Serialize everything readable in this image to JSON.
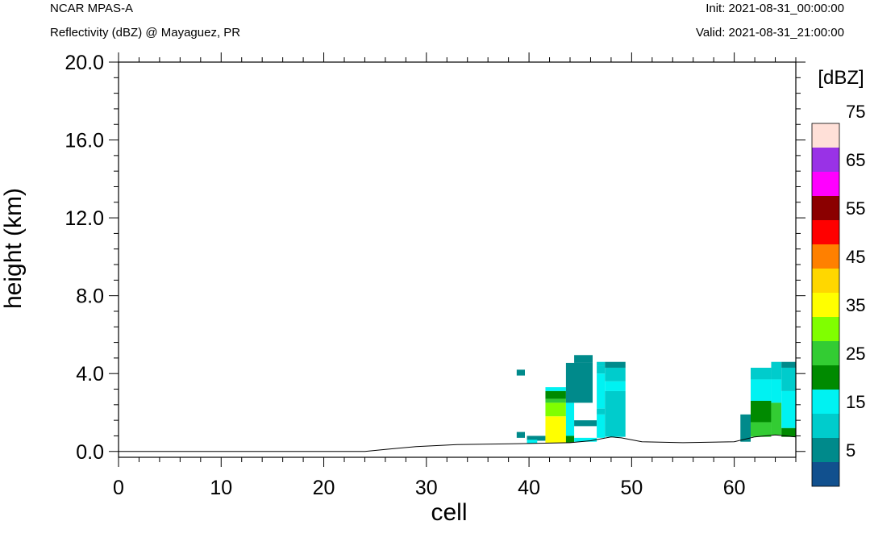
{
  "header": {
    "model": "NCAR MPAS-A",
    "subtitle": "Reflectivity (dBZ) @ Mayaguez, PR",
    "init": "Init: 2021-08-31_00:00:00",
    "valid": "Valid: 2021-08-31_21:00:00"
  },
  "colors": {
    "palette": [
      "#11508e",
      "#008a8b",
      "#00cccc",
      "#00f2f2",
      "#008a00",
      "#33cc33",
      "#80ff00",
      "#ffff00",
      "#ffd700",
      "#ff8000",
      "#ff0000",
      "#8b0000",
      "#ff00ff",
      "#9932e6",
      "#ffe0d8"
    ]
  },
  "chart_data": {
    "type": "heatmap",
    "xlabel": "cell",
    "ylabel": "height (km)",
    "xlim": [
      0,
      66
    ],
    "ylim": [
      -0.3,
      20.0
    ],
    "xticks": [
      "0",
      "10",
      "20",
      "30",
      "40",
      "50",
      "60"
    ],
    "yticks": [
      "0.0",
      "4.0",
      "8.0",
      "12.0",
      "16.0",
      "20.0"
    ],
    "colorbar": {
      "label": "[dBZ]",
      "min": 0,
      "max": 75,
      "step": 5,
      "tick_labels": [
        "5",
        "15",
        "25",
        "35",
        "45",
        "55",
        "65",
        "75"
      ]
    },
    "terrain": [
      [
        0,
        0.0
      ],
      [
        24,
        0.0
      ],
      [
        26,
        0.1
      ],
      [
        29,
        0.25
      ],
      [
        33,
        0.35
      ],
      [
        39,
        0.4
      ],
      [
        44,
        0.45
      ],
      [
        46,
        0.55
      ],
      [
        48,
        0.75
      ],
      [
        49,
        0.7
      ],
      [
        51,
        0.5
      ],
      [
        55,
        0.45
      ],
      [
        60,
        0.5
      ],
      [
        62,
        0.75
      ],
      [
        64,
        0.85
      ],
      [
        66,
        0.75
      ]
    ],
    "cells": [
      {
        "x0": 38.8,
        "x1": 39.6,
        "y0": 3.9,
        "y1": 4.2,
        "dbz": 5
      },
      {
        "x0": 38.8,
        "x1": 39.6,
        "y0": 0.7,
        "y1": 1.0,
        "dbz": 5
      },
      {
        "x0": 39.8,
        "x1": 41.6,
        "y0": 0.55,
        "y1": 0.8,
        "dbz": 5
      },
      {
        "x0": 39.8,
        "x1": 40.8,
        "y0": 0.42,
        "y1": 0.6,
        "dbz": 15
      },
      {
        "x0": 41.6,
        "x1": 43.6,
        "y0": 3.1,
        "y1": 3.3,
        "dbz": 15
      },
      {
        "x0": 41.6,
        "x1": 43.6,
        "y0": 2.7,
        "y1": 3.1,
        "dbz": 20
      },
      {
        "x0": 41.6,
        "x1": 43.6,
        "y0": 2.5,
        "y1": 2.7,
        "dbz": 25
      },
      {
        "x0": 41.6,
        "x1": 43.6,
        "y0": 1.8,
        "y1": 2.5,
        "dbz": 30
      },
      {
        "x0": 41.6,
        "x1": 43.6,
        "y0": 0.45,
        "y1": 1.8,
        "dbz": 35
      },
      {
        "x0": 43.6,
        "x1": 44.4,
        "y0": 0.8,
        "y1": 2.5,
        "dbz": 15
      },
      {
        "x0": 43.6,
        "x1": 44.4,
        "y0": 0.45,
        "y1": 0.8,
        "dbz": 20
      },
      {
        "x0": 43.6,
        "x1": 46.2,
        "y0": 2.5,
        "y1": 4.55,
        "dbz": 5
      },
      {
        "x0": 44.4,
        "x1": 46.2,
        "y0": 4.55,
        "y1": 4.95,
        "dbz": 5
      },
      {
        "x0": 44.4,
        "x1": 46.6,
        "y0": 1.3,
        "y1": 1.6,
        "dbz": 5
      },
      {
        "x0": 44.4,
        "x1": 46.6,
        "y0": 0.5,
        "y1": 0.7,
        "dbz": 15
      },
      {
        "x0": 46.6,
        "x1": 47.4,
        "y0": 4.4,
        "y1": 4.6,
        "dbz": 10
      },
      {
        "x0": 46.6,
        "x1": 47.4,
        "y0": 4.0,
        "y1": 4.4,
        "dbz": 10
      },
      {
        "x0": 46.6,
        "x1": 47.4,
        "y0": 2.2,
        "y1": 4.0,
        "dbz": 15
      },
      {
        "x0": 46.6,
        "x1": 47.4,
        "y0": 1.9,
        "y1": 2.2,
        "dbz": 10
      },
      {
        "x0": 46.6,
        "x1": 47.4,
        "y0": 0.7,
        "y1": 1.9,
        "dbz": 15
      },
      {
        "x0": 47.4,
        "x1": 49.4,
        "y0": 4.3,
        "y1": 4.6,
        "dbz": 5
      },
      {
        "x0": 47.4,
        "x1": 49.4,
        "y0": 3.6,
        "y1": 4.3,
        "dbz": 10
      },
      {
        "x0": 47.4,
        "x1": 49.4,
        "y0": 3.1,
        "y1": 3.6,
        "dbz": 15
      },
      {
        "x0": 47.4,
        "x1": 49.4,
        "y0": 0.75,
        "y1": 3.1,
        "dbz": 10
      },
      {
        "x0": 60.6,
        "x1": 61.6,
        "y0": 0.5,
        "y1": 1.9,
        "dbz": 5
      },
      {
        "x0": 61.6,
        "x1": 63.6,
        "y0": 3.7,
        "y1": 4.3,
        "dbz": 10
      },
      {
        "x0": 61.6,
        "x1": 63.6,
        "y0": 2.6,
        "y1": 3.7,
        "dbz": 15
      },
      {
        "x0": 61.6,
        "x1": 63.6,
        "y0": 1.5,
        "y1": 2.6,
        "dbz": 20
      },
      {
        "x0": 61.6,
        "x1": 63.6,
        "y0": 0.75,
        "y1": 1.5,
        "dbz": 25
      },
      {
        "x0": 63.6,
        "x1": 64.6,
        "y0": 3.7,
        "y1": 4.6,
        "dbz": 10
      },
      {
        "x0": 63.6,
        "x1": 64.6,
        "y0": 2.5,
        "y1": 3.7,
        "dbz": 15
      },
      {
        "x0": 63.6,
        "x1": 64.6,
        "y0": 0.85,
        "y1": 2.5,
        "dbz": 25
      },
      {
        "x0": 64.6,
        "x1": 66.6,
        "y0": 4.3,
        "y1": 4.6,
        "dbz": 5
      },
      {
        "x0": 64.6,
        "x1": 66.6,
        "y0": 3.1,
        "y1": 4.3,
        "dbz": 10
      },
      {
        "x0": 64.6,
        "x1": 66.6,
        "y0": 1.2,
        "y1": 3.1,
        "dbz": 15
      },
      {
        "x0": 64.6,
        "x1": 66.6,
        "y0": 0.75,
        "y1": 1.2,
        "dbz": 20
      }
    ]
  }
}
